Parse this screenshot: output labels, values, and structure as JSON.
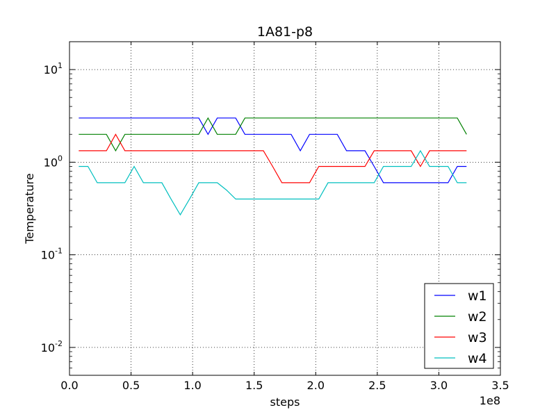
{
  "chart_data": {
    "type": "line",
    "title": "1A81-p8",
    "xlabel": "steps",
    "ylabel": "Temperature",
    "x_offset_label": "1e8",
    "x_scale": 100000000,
    "xlim": [
      0.0,
      3.5
    ],
    "ylim": [
      0.005,
      20
    ],
    "yscale": "log",
    "grid": true,
    "x_ticks": [
      0.0,
      0.5,
      1.0,
      1.5,
      2.0,
      2.5,
      3.0,
      3.5
    ],
    "x_tick_labels": [
      "0.0",
      "0.5",
      "1.0",
      "1.5",
      "2.0",
      "2.5",
      "3.0",
      "3.5"
    ],
    "y_ticks": [
      {
        "value": 0.01,
        "base": "10",
        "exp": "-2"
      },
      {
        "value": 0.1,
        "base": "10",
        "exp": "-1"
      },
      {
        "value": 1,
        "base": "10",
        "exp": "0"
      },
      {
        "value": 10,
        "base": "10",
        "exp": "1"
      }
    ],
    "legend_position": "bottom-right",
    "series": [
      {
        "name": "w1",
        "color": "#0000ff",
        "x": [
          0.075,
          0.15,
          0.225,
          0.3,
          0.375,
          0.45,
          0.525,
          0.6,
          0.675,
          0.75,
          0.825,
          0.9,
          0.975,
          1.05,
          1.125,
          1.2,
          1.275,
          1.35,
          1.425,
          1.5,
          1.575,
          1.65,
          1.725,
          1.8,
          1.875,
          1.95,
          2.025,
          2.1,
          2.175,
          2.25,
          2.325,
          2.4,
          2.475,
          2.55,
          2.625,
          2.7,
          2.775,
          2.85,
          2.925,
          3.0,
          3.075,
          3.15,
          3.225
        ],
        "y": [
          3,
          3,
          3,
          3,
          3,
          3,
          3,
          3,
          3,
          3,
          3,
          3,
          3,
          3,
          2,
          3,
          3,
          3,
          2,
          2,
          2,
          2,
          2,
          2,
          1.33,
          2,
          2,
          2,
          2,
          1.33,
          1.33,
          1.33,
          0.9,
          0.6,
          0.6,
          0.6,
          0.6,
          0.6,
          0.6,
          0.6,
          0.6,
          0.9,
          0.9
        ]
      },
      {
        "name": "w2",
        "color": "#008000",
        "x": [
          0.075,
          0.15,
          0.225,
          0.3,
          0.375,
          0.45,
          0.525,
          0.6,
          0.675,
          0.75,
          0.825,
          0.9,
          0.975,
          1.05,
          1.125,
          1.2,
          1.275,
          1.35,
          1.425,
          1.5,
          1.575,
          1.65,
          1.725,
          1.8,
          1.875,
          1.95,
          2.025,
          2.1,
          2.175,
          2.25,
          2.325,
          2.4,
          2.475,
          2.55,
          2.625,
          2.7,
          2.775,
          2.85,
          2.925,
          3.0,
          3.075,
          3.15,
          3.225
        ],
        "y": [
          2,
          2,
          2,
          2,
          1.33,
          2,
          2,
          2,
          2,
          2,
          2,
          2,
          2,
          2,
          3,
          2,
          2,
          2,
          3,
          3,
          3,
          3,
          3,
          3,
          3,
          3,
          3,
          3,
          3,
          3,
          3,
          3,
          3,
          3,
          3,
          3,
          3,
          3,
          3,
          3,
          3,
          3,
          2
        ]
      },
      {
        "name": "w3",
        "color": "#ff0000",
        "x": [
          0.075,
          0.15,
          0.225,
          0.3,
          0.375,
          0.45,
          0.525,
          0.6,
          0.675,
          0.75,
          0.825,
          0.9,
          0.975,
          1.05,
          1.125,
          1.2,
          1.275,
          1.35,
          1.425,
          1.5,
          1.575,
          1.65,
          1.725,
          1.8,
          1.875,
          1.95,
          2.025,
          2.1,
          2.175,
          2.25,
          2.325,
          2.4,
          2.475,
          2.55,
          2.625,
          2.7,
          2.775,
          2.85,
          2.925,
          3.0,
          3.075,
          3.15,
          3.225
        ],
        "y": [
          1.33,
          1.33,
          1.33,
          1.33,
          2,
          1.33,
          1.33,
          1.33,
          1.33,
          1.33,
          1.33,
          1.33,
          1.33,
          1.33,
          1.33,
          1.33,
          1.33,
          1.33,
          1.33,
          1.33,
          1.33,
          0.9,
          0.6,
          0.6,
          0.6,
          0.6,
          0.9,
          0.9,
          0.9,
          0.9,
          0.9,
          0.9,
          1.33,
          1.33,
          1.33,
          1.33,
          1.33,
          0.9,
          1.33,
          1.33,
          1.33,
          1.33,
          1.33
        ]
      },
      {
        "name": "w4",
        "color": "#00bfbf",
        "x": [
          0.075,
          0.15,
          0.225,
          0.3,
          0.375,
          0.45,
          0.525,
          0.6,
          0.675,
          0.75,
          0.825,
          0.9,
          0.975,
          1.05,
          1.125,
          1.2,
          1.275,
          1.35,
          1.425,
          1.5,
          1.575,
          1.65,
          1.725,
          1.8,
          1.875,
          1.95,
          2.025,
          2.1,
          2.175,
          2.25,
          2.325,
          2.4,
          2.475,
          2.55,
          2.625,
          2.7,
          2.775,
          2.85,
          2.925,
          3.0,
          3.075,
          3.15,
          3.225
        ],
        "y": [
          0.9,
          0.9,
          0.6,
          0.6,
          0.6,
          0.6,
          0.9,
          0.6,
          0.6,
          0.6,
          0.4,
          0.27,
          0.4,
          0.6,
          0.6,
          0.6,
          0.5,
          0.4,
          0.4,
          0.4,
          0.4,
          0.4,
          0.4,
          0.4,
          0.4,
          0.4,
          0.4,
          0.6,
          0.6,
          0.6,
          0.6,
          0.6,
          0.6,
          0.9,
          0.9,
          0.9,
          0.9,
          1.33,
          0.9,
          0.9,
          0.9,
          0.6,
          0.6
        ]
      }
    ]
  }
}
